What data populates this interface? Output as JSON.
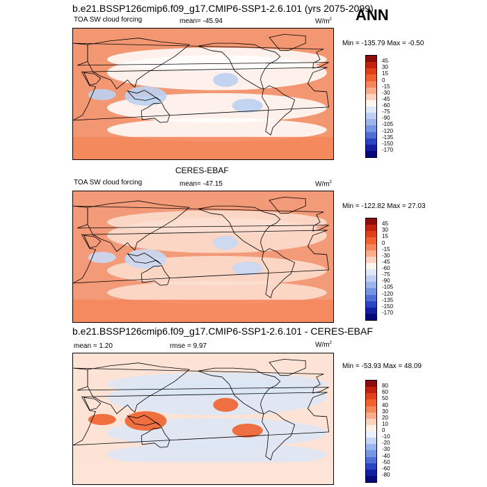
{
  "season": "ANN",
  "panels": [
    {
      "heading": "b.e21.BSSP126cmip6.f09_g17.CMIP6-SSP1-2.6.101 (yrs 2075-2099)",
      "variable": "TOA SW cloud forcing",
      "stat1": "mean= -45.94",
      "stat2": "",
      "units_base": "W/m",
      "units_exp": "2",
      "minmax": "Min = -135.79 Max =  -0.50",
      "levels": [
        "45",
        "30",
        "15",
        "0",
        "-15",
        "-30",
        "-45",
        "-60",
        "-75",
        "-90",
        "-105",
        "-120",
        "-135",
        "-150",
        "-170"
      ],
      "colors": [
        "#8b0d0d",
        "#c0240f",
        "#e0401a",
        "#f0622e",
        "#f5875c",
        "#f8ad8c",
        "#fbd4bf",
        "#fff5ee",
        "#dfe8f8",
        "#bfd0f2",
        "#9bb6ea",
        "#7696e2",
        "#4f6fd6",
        "#2b44c4",
        "#1220a0",
        "#07097a"
      ],
      "base_color": "#f39772",
      "band_color": "#ffffff",
      "anomaly_color": "#bcd0f2"
    },
    {
      "heading": "CERES-EBAF",
      "variable": "TOA SW cloud forcing",
      "stat1": "mean= -47.15",
      "stat2": "",
      "units_base": "W/m",
      "units_exp": "2",
      "minmax": "Min = -122.82 Max =  27.03",
      "levels": [
        "45",
        "30",
        "15",
        "0",
        "-15",
        "-30",
        "-45",
        "-60",
        "-75",
        "-90",
        "-105",
        "-120",
        "-135",
        "-150",
        "-170"
      ],
      "colors": [
        "#8b0d0d",
        "#c0240f",
        "#e0401a",
        "#f0622e",
        "#f5875c",
        "#f8ad8c",
        "#fbd4bf",
        "#fff5ee",
        "#dfe8f8",
        "#bfd0f2",
        "#9bb6ea",
        "#7696e2",
        "#4f6fd6",
        "#2b44c4",
        "#1220a0",
        "#07097a"
      ],
      "base_color": "#f39a78",
      "band_color": "#fbe0d2",
      "anomaly_color": "#c9d9f4"
    },
    {
      "heading": "b.e21.BSSP126cmip6.f09_g17.CMIP6-SSP1-2.6.101 - CERES-EBAF",
      "variable": "",
      "stat1": "mean =   1.20",
      "stat2": "rmse =   9.97",
      "units_base": "W/m",
      "units_exp": "2",
      "minmax": "Min = -53.93 Max =  48.09",
      "levels": [
        "80",
        "60",
        "50",
        "40",
        "30",
        "20",
        "10",
        "0",
        "-10",
        "-20",
        "-30",
        "-40",
        "-50",
        "-60",
        "-80"
      ],
      "colors": [
        "#8b0d0d",
        "#c0240f",
        "#e0401a",
        "#f0622e",
        "#f5875c",
        "#f8ad8c",
        "#fbd4bf",
        "#fff0e6",
        "#eaf1fb",
        "#c5d6f3",
        "#9bb6ea",
        "#7696e2",
        "#4f6fd6",
        "#2b44c4",
        "#1220a0",
        "#07097a"
      ],
      "base_color": "#fde3d6",
      "band_color": "#dbe6f7",
      "anomaly_color": "#f0622e"
    }
  ]
}
